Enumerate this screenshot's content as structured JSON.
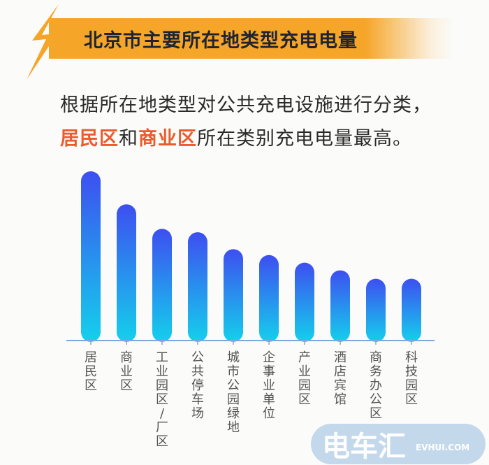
{
  "header": {
    "title": "北京市主要所在地类型充电电量",
    "icon": "lightning-bolt-icon",
    "banner_color": "#f5a528"
  },
  "subtitle": {
    "line1": "根据所在地类型对公共充电设施进行分类，",
    "line2_hl1": "居民区",
    "line2_mid": "和",
    "line2_hl2": "商业区",
    "line2_end": "所在类别充电电量最高。",
    "highlight_color": "#ec5a2d"
  },
  "chart_data": {
    "type": "bar",
    "title": "北京市主要所在地类型充电电量",
    "categories": [
      "居民区",
      "商业区",
      "工业园区/厂区",
      "公共停车场",
      "城市公园绿地",
      "企事业单位",
      "产业园区",
      "酒店宾馆",
      "商务办公区",
      "科技园区"
    ],
    "values": [
      100,
      80.5,
      66,
      64,
      54,
      50.5,
      46,
      41.5,
      36.5,
      36.5
    ],
    "value_note": "relative, no axis printed",
    "ylim": [
      0,
      100
    ],
    "grid": false,
    "legend": "none",
    "bar_gradient": [
      "#3d4ff0",
      "#14d0ec"
    ],
    "axis_color": "#7fa6e0"
  },
  "watermark": {
    "logo_text": "电车汇",
    "url_text": "EVHUI.COM",
    "color": "#b9d2e8"
  }
}
